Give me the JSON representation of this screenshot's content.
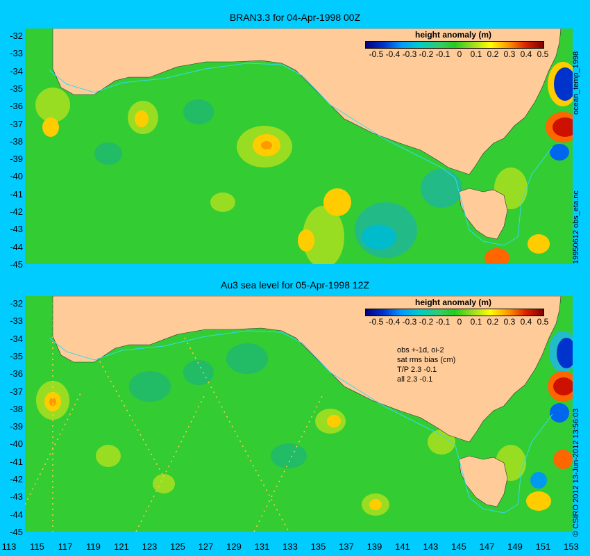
{
  "panels": [
    {
      "title": "BRAN3.3 for 04-Apr-1998 00Z",
      "colorbar_title": "height anomaly (m)",
      "side_label": "19950612 obs_eta.nc",
      "side_label_top": "ocean_temp_1998"
    },
    {
      "title": "Au3 sea level  for 05-Apr-1998 12Z",
      "colorbar_title": "height anomaly (m)",
      "stats": [
        "obs +-1d, oi-2",
        "sat rms bias (cm)",
        "T/P  2.3 -0.1",
        "all 2.3 -0.1"
      ],
      "side_label": "© CSIRO 2012  13-Jun-2012 13:56:03"
    }
  ],
  "colorbar_ticks": [
    "-0.5",
    "-0.4",
    "-0.3",
    "-0.2",
    "-0.1",
    "0",
    "0.1",
    "0.2",
    "0.3",
    "0.4",
    "0.5"
  ],
  "y_ticks": [
    "-32",
    "-33",
    "-34",
    "-35",
    "-36",
    "-37",
    "-38",
    "-39",
    "-40",
    "-41",
    "-42",
    "-43",
    "-44",
    "-45"
  ],
  "x_ticks": [
    "113",
    "115",
    "117",
    "119",
    "121",
    "123",
    "125",
    "127",
    "129",
    "131",
    "133",
    "135",
    "137",
    "139",
    "141",
    "143",
    "145",
    "147",
    "149",
    "151",
    "153"
  ],
  "map": {
    "lon_range": [
      113,
      153
    ],
    "lat_range": [
      -45,
      -31.6
    ],
    "colors": {
      "background": "#00ccff",
      "land": "#ffcc99",
      "ocean_base": "#33cc33",
      "track": "#33ddee",
      "high": "#cc1100",
      "low": "#0033cc"
    }
  }
}
